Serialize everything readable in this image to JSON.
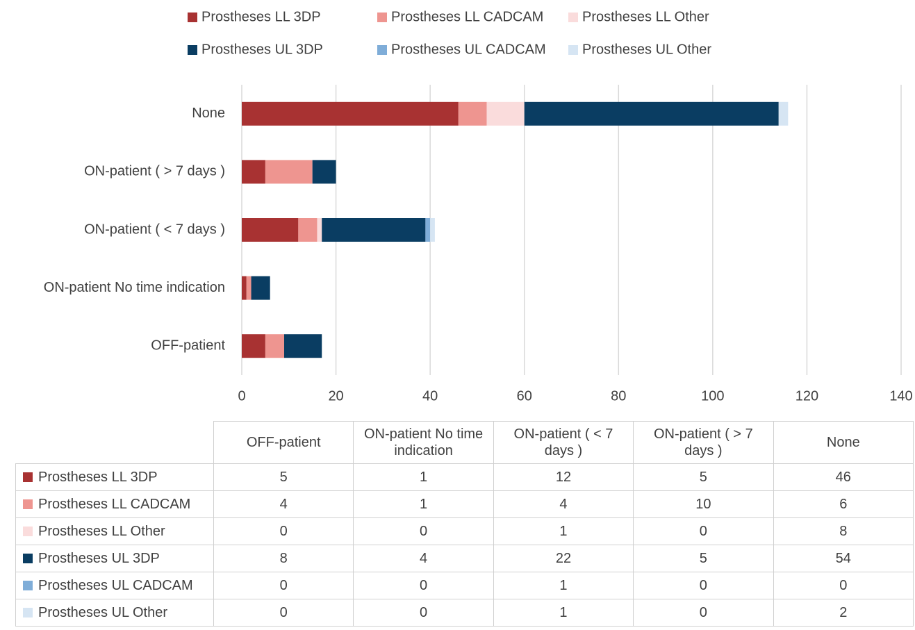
{
  "chart_data": {
    "type": "stacked_barh",
    "categories": [
      "OFF-patient",
      "ON-patient No time indication",
      "ON-patient ( < 7 days )",
      "ON-patient ( > 7 days )",
      "None"
    ],
    "series": [
      {
        "name": "Prostheses LL 3DP",
        "color": "#a83232",
        "values": [
          5,
          1,
          12,
          5,
          46
        ]
      },
      {
        "name": "Prostheses LL CADCAM",
        "color": "#ee9590",
        "values": [
          4,
          1,
          4,
          10,
          6
        ]
      },
      {
        "name": "Prostheses LL Other",
        "color": "#fadcdc",
        "values": [
          0,
          0,
          1,
          0,
          8
        ]
      },
      {
        "name": "Prostheses UL 3DP",
        "color": "#0a3d62",
        "values": [
          8,
          4,
          22,
          5,
          54
        ]
      },
      {
        "name": "Prostheses UL CADCAM",
        "color": "#7fadd8",
        "values": [
          0,
          0,
          1,
          0,
          0
        ]
      },
      {
        "name": "Prostheses UL Other",
        "color": "#d6e5f3",
        "values": [
          0,
          0,
          1,
          0,
          2
        ]
      }
    ],
    "xlim": [
      0,
      140
    ],
    "xticks": [
      0,
      20,
      40,
      60,
      80,
      100,
      120,
      140
    ],
    "grid": true,
    "legend": "top",
    "data_table": true
  }
}
